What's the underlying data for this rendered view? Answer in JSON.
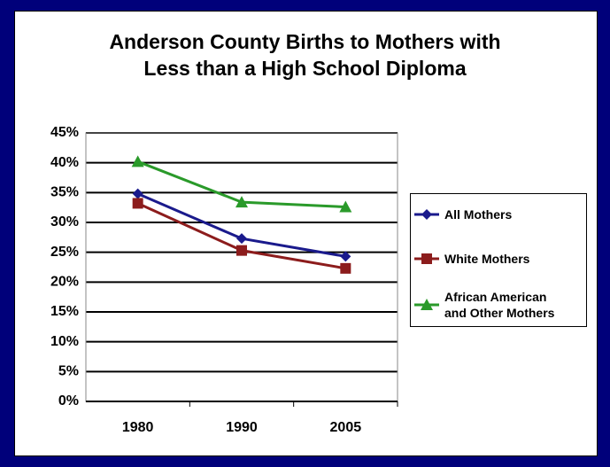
{
  "chart_data": {
    "type": "line",
    "title": "Anderson County Births to Mothers with\nLess than a High School Diploma",
    "categories": [
      "1980",
      "1990",
      "2005"
    ],
    "series": [
      {
        "name": "All Mothers",
        "color": "#1a1a8c",
        "marker": "diamond",
        "values": [
          34.8,
          27.3,
          24.3
        ]
      },
      {
        "name": "White Mothers",
        "color": "#8c1c1c",
        "marker": "square",
        "values": [
          33.2,
          25.3,
          22.3
        ]
      },
      {
        "name": "African American\nand Other Mothers",
        "color": "#2a9a2a",
        "marker": "triangle",
        "values": [
          40.2,
          33.4,
          32.6
        ]
      }
    ],
    "ylim": [
      0,
      45
    ],
    "yticks": [
      {
        "value": 0,
        "label": "0%"
      },
      {
        "value": 5,
        "label": "5%"
      },
      {
        "value": 10,
        "label": "10%"
      },
      {
        "value": 15,
        "label": "15%"
      },
      {
        "value": 20,
        "label": "20%"
      },
      {
        "value": 25,
        "label": "25%"
      },
      {
        "value": 30,
        "label": "30%"
      },
      {
        "value": 35,
        "label": "35%"
      },
      {
        "value": 40,
        "label": "40%"
      },
      {
        "value": 45,
        "label": "45%"
      }
    ],
    "grid": true,
    "legend": "right"
  }
}
